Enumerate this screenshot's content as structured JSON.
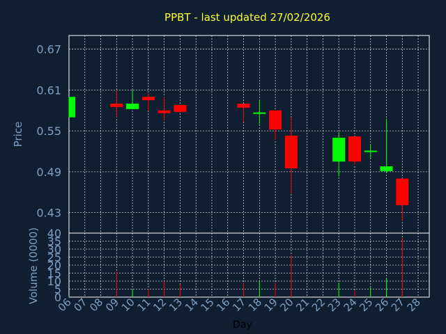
{
  "chart_data": [
    {
      "type": "candlestick",
      "title": "PPBT - last updated 27/02/2026",
      "ylabel": "Price",
      "xlabel": "",
      "ylim": [
        0.4,
        0.69
      ],
      "yticks": [
        0.67,
        0.61,
        0.55,
        0.49,
        0.43
      ],
      "x_ticks": [
        "06",
        "07",
        "08",
        "09",
        "10",
        "11",
        "12",
        "13",
        "14",
        "15",
        "16",
        "17",
        "18",
        "19",
        "20",
        "21",
        "22",
        "23",
        "24",
        "25",
        "26",
        "27",
        "28"
      ],
      "colors": {
        "up": "#00ff00",
        "down": "#ff0000"
      },
      "candles": [
        {
          "day": "06",
          "open": 0.57,
          "high": 0.6,
          "low": 0.57,
          "close": 0.6
        },
        {
          "day": "09",
          "open": 0.59,
          "high": 0.61,
          "low": 0.57,
          "close": 0.585
        },
        {
          "day": "10",
          "open": 0.582,
          "high": 0.61,
          "low": 0.582,
          "close": 0.59
        },
        {
          "day": "11",
          "open": 0.6,
          "high": 0.605,
          "low": 0.58,
          "close": 0.595
        },
        {
          "day": "12",
          "open": 0.58,
          "high": 0.6,
          "low": 0.565,
          "close": 0.576
        },
        {
          "day": "13",
          "open": 0.588,
          "high": 0.588,
          "low": 0.576,
          "close": 0.578
        },
        {
          "day": "17",
          "open": 0.59,
          "high": 0.59,
          "low": 0.563,
          "close": 0.584
        },
        {
          "day": "18",
          "open": 0.576,
          "high": 0.595,
          "low": 0.56,
          "close": 0.577
        },
        {
          "day": "19",
          "open": 0.58,
          "high": 0.58,
          "low": 0.537,
          "close": 0.552
        },
        {
          "day": "20",
          "open": 0.543,
          "high": 0.57,
          "low": 0.458,
          "close": 0.495
        },
        {
          "day": "23",
          "open": 0.505,
          "high": 0.548,
          "low": 0.483,
          "close": 0.54
        },
        {
          "day": "24",
          "open": 0.542,
          "high": 0.542,
          "low": 0.5,
          "close": 0.505
        },
        {
          "day": "25",
          "open": 0.519,
          "high": 0.53,
          "low": 0.51,
          "close": 0.521
        },
        {
          "day": "26",
          "open": 0.491,
          "high": 0.568,
          "low": 0.488,
          "close": 0.498
        },
        {
          "day": "27",
          "open": 0.48,
          "high": 0.48,
          "low": 0.418,
          "close": 0.441
        }
      ]
    },
    {
      "type": "bar",
      "ylabel": "Volume (0000)",
      "xlabel": "Day",
      "ylim": [
        0,
        40
      ],
      "yticks": [
        "40",
        "35",
        "30",
        "25",
        "20",
        "15",
        "10",
        "5",
        "0"
      ],
      "x_ticks": [
        "06",
        "07",
        "08",
        "09",
        "10",
        "11",
        "12",
        "13",
        "14",
        "15",
        "16",
        "17",
        "18",
        "19",
        "20",
        "21",
        "22",
        "23",
        "24",
        "25",
        "26",
        "27",
        "28"
      ],
      "bars": [
        {
          "day": "06",
          "value": 0.5,
          "dir": "up"
        },
        {
          "day": "09",
          "value": 16,
          "dir": "down"
        },
        {
          "day": "10",
          "value": 5,
          "dir": "up"
        },
        {
          "day": "11",
          "value": 5,
          "dir": "down"
        },
        {
          "day": "12",
          "value": 10,
          "dir": "down"
        },
        {
          "day": "13",
          "value": 8,
          "dir": "down"
        },
        {
          "day": "17",
          "value": 9,
          "dir": "down"
        },
        {
          "day": "18",
          "value": 10,
          "dir": "up"
        },
        {
          "day": "19",
          "value": 9,
          "dir": "down"
        },
        {
          "day": "20",
          "value": 26,
          "dir": "down"
        },
        {
          "day": "23",
          "value": 9,
          "dir": "up"
        },
        {
          "day": "24",
          "value": 4,
          "dir": "down"
        },
        {
          "day": "25",
          "value": 6,
          "dir": "up"
        },
        {
          "day": "26",
          "value": 12,
          "dir": "up"
        },
        {
          "day": "27",
          "value": 37,
          "dir": "down"
        }
      ]
    }
  ]
}
